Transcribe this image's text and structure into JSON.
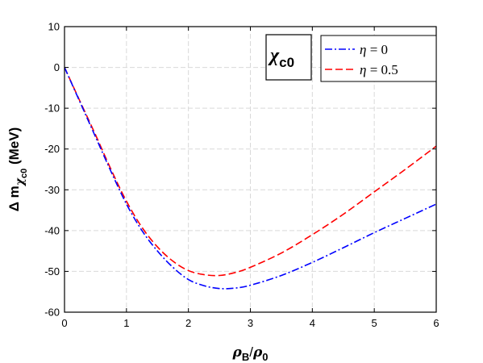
{
  "chart_data": {
    "type": "line",
    "xlabel": {
      "main": "ρ",
      "sub": "B",
      "sep": "/",
      "main2": "ρ",
      "sub2": "0"
    },
    "ylabel": {
      "main": "Δ m",
      "sub": "χ",
      "subsub": "c0",
      "unit": "(MeV)"
    },
    "xlim": [
      0,
      6
    ],
    "ylim": [
      -60,
      10
    ],
    "xticks": [
      0,
      1,
      2,
      3,
      4,
      5,
      6
    ],
    "yticks": [
      10,
      0,
      -10,
      -20,
      -30,
      -40,
      -50,
      -60
    ],
    "grid": true,
    "legend_position": "top-right",
    "annotation": {
      "main": "χ",
      "sub": "c0"
    },
    "series": [
      {
        "name": "η = 0",
        "color": "#0000ff",
        "style": "dash-dot",
        "x": [
          0,
          0.25,
          0.5,
          0.75,
          1.0,
          1.25,
          1.5,
          1.75,
          2.0,
          2.25,
          2.5,
          2.75,
          3.0,
          3.5,
          4.0,
          4.5,
          5.0,
          5.5,
          6.0
        ],
        "y": [
          0,
          -8.5,
          -17,
          -25.5,
          -33.5,
          -40,
          -45,
          -49,
          -52,
          -53.5,
          -54.2,
          -54.1,
          -53.4,
          -51,
          -47.8,
          -44.2,
          -40.5,
          -37,
          -33.5
        ]
      },
      {
        "name": "η = 0.5",
        "color": "#ff0000",
        "style": "dashed",
        "x": [
          0,
          0.25,
          0.5,
          0.75,
          1.0,
          1.25,
          1.5,
          1.75,
          2.0,
          2.25,
          2.5,
          2.75,
          3.0,
          3.5,
          4.0,
          4.5,
          5.0,
          5.5,
          6.0
        ],
        "y": [
          0,
          -8.3,
          -16.5,
          -25,
          -32.8,
          -39.2,
          -44,
          -47.5,
          -49.8,
          -50.8,
          -51,
          -50.3,
          -49,
          -45.5,
          -41,
          -36,
          -30.5,
          -25,
          -19.3
        ]
      }
    ]
  }
}
